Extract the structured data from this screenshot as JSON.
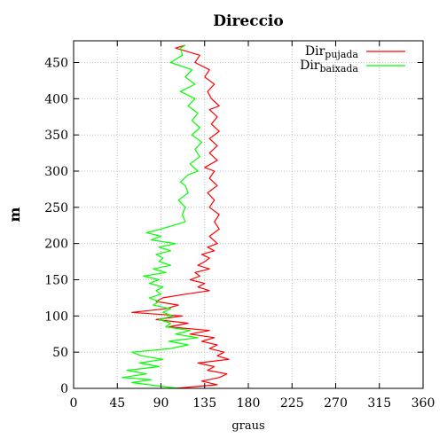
{
  "chart_data": {
    "type": "line",
    "title": "Direccio",
    "xlabel": "graus",
    "ylabel": "m",
    "xlim": [
      0,
      360
    ],
    "ylim": [
      0,
      480
    ],
    "xticks": [
      0,
      45,
      90,
      135,
      180,
      225,
      270,
      315,
      360
    ],
    "yticks": [
      0,
      50,
      100,
      150,
      200,
      250,
      300,
      350,
      400,
      450
    ],
    "grid": true,
    "legend_position": "top-right",
    "series": [
      {
        "name_main": "Dir",
        "name_sub": "pujada",
        "color": "#ff0000",
        "points": [
          [
            105,
            0
          ],
          [
            148,
            5
          ],
          [
            132,
            10
          ],
          [
            150,
            15
          ],
          [
            158,
            20
          ],
          [
            138,
            25
          ],
          [
            145,
            30
          ],
          [
            128,
            35
          ],
          [
            160,
            40
          ],
          [
            148,
            45
          ],
          [
            155,
            50
          ],
          [
            140,
            55
          ],
          [
            148,
            60
          ],
          [
            132,
            65
          ],
          [
            145,
            70
          ],
          [
            120,
            75
          ],
          [
            140,
            80
          ],
          [
            98,
            85
          ],
          [
            118,
            90
          ],
          [
            85,
            95
          ],
          [
            112,
            100
          ],
          [
            60,
            105
          ],
          [
            95,
            110
          ],
          [
            108,
            115
          ],
          [
            85,
            120
          ],
          [
            92,
            125
          ],
          [
            115,
            130
          ],
          [
            140,
            135
          ],
          [
            128,
            140
          ],
          [
            135,
            145
          ],
          [
            120,
            150
          ],
          [
            130,
            155
          ],
          [
            125,
            160
          ],
          [
            140,
            165
          ],
          [
            128,
            170
          ],
          [
            135,
            175
          ],
          [
            140,
            180
          ],
          [
            132,
            185
          ],
          [
            145,
            190
          ],
          [
            138,
            195
          ],
          [
            148,
            200
          ],
          [
            140,
            210
          ],
          [
            150,
            220
          ],
          [
            145,
            230
          ],
          [
            150,
            240
          ],
          [
            140,
            250
          ],
          [
            145,
            260
          ],
          [
            138,
            270
          ],
          [
            148,
            280
          ],
          [
            140,
            290
          ],
          [
            145,
            300
          ],
          [
            135,
            305
          ],
          [
            148,
            315
          ],
          [
            140,
            325
          ],
          [
            148,
            335
          ],
          [
            140,
            345
          ],
          [
            150,
            355
          ],
          [
            142,
            365
          ],
          [
            148,
            375
          ],
          [
            140,
            385
          ],
          [
            150,
            390
          ],
          [
            142,
            400
          ],
          [
            138,
            410
          ],
          [
            145,
            420
          ],
          [
            135,
            430
          ],
          [
            140,
            440
          ],
          [
            125,
            450
          ],
          [
            130,
            460
          ],
          [
            105,
            470
          ],
          [
            115,
            474
          ]
        ]
      },
      {
        "name_main": "Dir",
        "name_sub": "baixada",
        "color": "#00ff00",
        "points": [
          [
            108,
            0
          ],
          [
            90,
            3
          ],
          [
            60,
            8
          ],
          [
            80,
            12
          ],
          [
            50,
            15
          ],
          [
            75,
            20
          ],
          [
            55,
            25
          ],
          [
            88,
            30
          ],
          [
            68,
            35
          ],
          [
            92,
            40
          ],
          [
            70,
            45
          ],
          [
            60,
            50
          ],
          [
            100,
            55
          ],
          [
            118,
            60
          ],
          [
            98,
            65
          ],
          [
            128,
            70
          ],
          [
            105,
            75
          ],
          [
            120,
            80
          ],
          [
            95,
            85
          ],
          [
            100,
            90
          ],
          [
            88,
            95
          ],
          [
            102,
            100
          ],
          [
            92,
            105
          ],
          [
            100,
            110
          ],
          [
            82,
            115
          ],
          [
            88,
            120
          ],
          [
            78,
            125
          ],
          [
            90,
            130
          ],
          [
            85,
            135
          ],
          [
            92,
            140
          ],
          [
            78,
            145
          ],
          [
            88,
            150
          ],
          [
            72,
            155
          ],
          [
            95,
            160
          ],
          [
            82,
            165
          ],
          [
            100,
            170
          ],
          [
            88,
            175
          ],
          [
            92,
            180
          ],
          [
            85,
            185
          ],
          [
            100,
            190
          ],
          [
            88,
            195
          ],
          [
            105,
            200
          ],
          [
            80,
            205
          ],
          [
            90,
            210
          ],
          [
            75,
            215
          ],
          [
            90,
            220
          ],
          [
            115,
            230
          ],
          [
            112,
            240
          ],
          [
            115,
            250
          ],
          [
            108,
            260
          ],
          [
            118,
            270
          ],
          [
            115,
            280
          ],
          [
            110,
            285
          ],
          [
            118,
            295
          ],
          [
            128,
            300
          ],
          [
            120,
            310
          ],
          [
            130,
            320
          ],
          [
            125,
            330
          ],
          [
            132,
            340
          ],
          [
            122,
            350
          ],
          [
            130,
            360
          ],
          [
            122,
            370
          ],
          [
            128,
            380
          ],
          [
            118,
            390
          ],
          [
            125,
            400
          ],
          [
            110,
            410
          ],
          [
            125,
            420
          ],
          [
            115,
            430
          ],
          [
            122,
            440
          ],
          [
            100,
            450
          ],
          [
            112,
            460
          ],
          [
            110,
            470
          ],
          [
            115,
            474
          ]
        ]
      }
    ]
  }
}
